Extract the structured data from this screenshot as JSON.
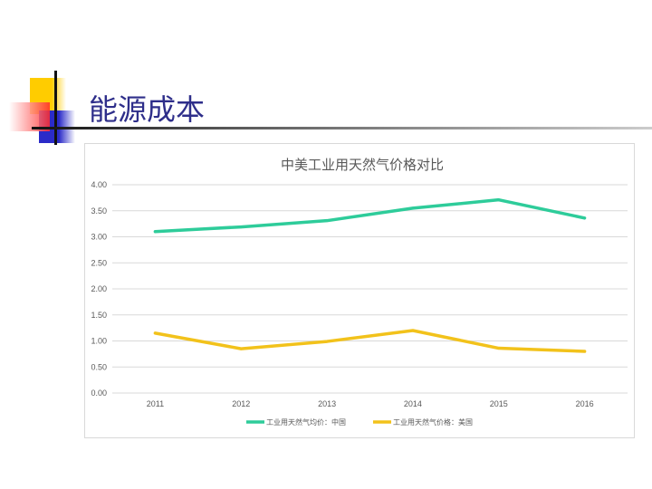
{
  "slide": {
    "title": "能源成本"
  },
  "chart_data": {
    "type": "line",
    "title": "中美工业用天然气价格对比",
    "categories": [
      "2011",
      "2012",
      "2013",
      "2014",
      "2015",
      "2016"
    ],
    "series": [
      {
        "name": "工业用天然气均价：中国",
        "color": "#2ecc9a",
        "values": [
          3.1,
          3.19,
          3.31,
          3.55,
          3.71,
          3.36
        ]
      },
      {
        "name": "工业用天然气价格：美国",
        "color": "#f2c21b",
        "values": [
          1.15,
          0.85,
          0.99,
          1.2,
          0.86,
          0.8
        ]
      }
    ],
    "yticks": [
      "0.00",
      "0.50",
      "1.00",
      "1.50",
      "2.00",
      "2.50",
      "3.00",
      "3.50",
      "4.00"
    ],
    "ylim": [
      0,
      4
    ],
    "grid": true,
    "legend": "bottom"
  }
}
